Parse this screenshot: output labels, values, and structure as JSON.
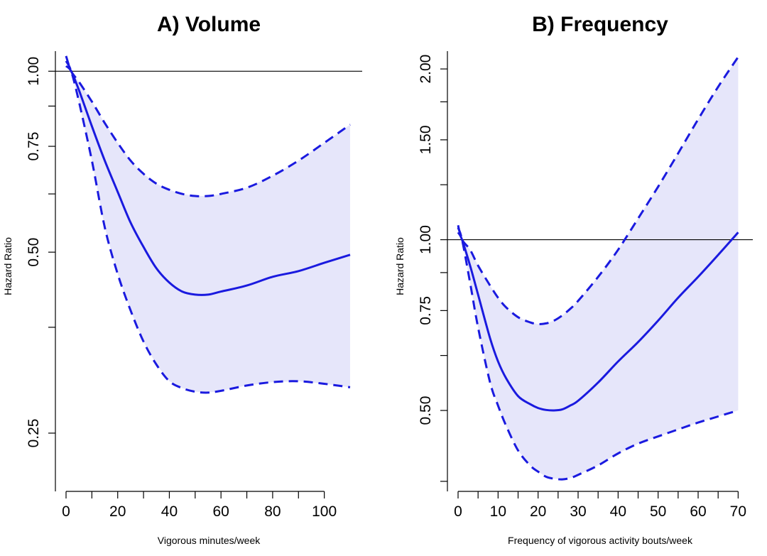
{
  "chart_data": [
    {
      "type": "line",
      "title": "A) Volume",
      "xlabel": "Vigorous minutes/week",
      "ylabel": "Hazard Ratio",
      "xlim": [
        0,
        110
      ],
      "ylim": [
        0.2,
        1.08
      ],
      "x_ticks": [
        0,
        20,
        40,
        60,
        80,
        100
      ],
      "y_ticks": [
        0.25,
        0.5,
        0.75,
        1.0
      ],
      "y_tick_labels": [
        "0.25",
        "0.50",
        "0.75",
        "1.00"
      ],
      "reference_line": 1.0,
      "colors": {
        "line": "#1a1adf",
        "band": "#e6e6fa",
        "reference": "#000000"
      },
      "series": [
        {
          "name": "estimate",
          "x": [
            0,
            2,
            5,
            10,
            15,
            20,
            25,
            30,
            35,
            40,
            45,
            50,
            55,
            60,
            70,
            80,
            90,
            100,
            110
          ],
          "values": [
            1.02,
            1.0,
            0.93,
            0.81,
            0.71,
            0.63,
            0.56,
            0.51,
            0.47,
            0.445,
            0.43,
            0.425,
            0.425,
            0.43,
            0.44,
            0.455,
            0.465,
            0.48,
            0.495
          ]
        },
        {
          "name": "upper_ci",
          "x": [
            0,
            2,
            5,
            10,
            15,
            20,
            25,
            30,
            35,
            40,
            45,
            50,
            55,
            60,
            70,
            80,
            90,
            100,
            110
          ],
          "values": [
            1.06,
            1.0,
            0.96,
            0.89,
            0.82,
            0.76,
            0.71,
            0.675,
            0.65,
            0.635,
            0.625,
            0.62,
            0.62,
            0.625,
            0.64,
            0.67,
            0.71,
            0.76,
            0.815
          ]
        },
        {
          "name": "lower_ci",
          "x": [
            0,
            2,
            5,
            10,
            15,
            20,
            25,
            30,
            35,
            40,
            45,
            50,
            55,
            60,
            70,
            80,
            90,
            100,
            110
          ],
          "values": [
            1.04,
            1.0,
            0.89,
            0.71,
            0.55,
            0.46,
            0.4,
            0.355,
            0.325,
            0.305,
            0.297,
            0.293,
            0.292,
            0.294,
            0.3,
            0.304,
            0.305,
            0.302,
            0.298
          ]
        }
      ]
    },
    {
      "type": "line",
      "title": "B) Frequency",
      "xlabel": "Frequency of vigorous activity bouts/week",
      "ylabel": "Hazard Ratio",
      "xlim": [
        0,
        71
      ],
      "ylim": [
        0.36,
        2.15
      ],
      "x_ticks": [
        0,
        10,
        20,
        30,
        40,
        50,
        60,
        70
      ],
      "y_ticks": [
        0.5,
        0.75,
        1.0,
        1.5,
        2.0
      ],
      "y_tick_labels": [
        "0.50",
        "0.75",
        "1.00",
        "1.50",
        "2.00"
      ],
      "reference_line": 1.0,
      "colors": {
        "line": "#1a1adf",
        "band": "#e6e6fa",
        "reference": "#000000"
      },
      "series": [
        {
          "name": "estimate",
          "x": [
            0,
            1,
            3,
            5,
            8,
            10,
            12,
            15,
            18,
            20,
            22,
            24,
            26,
            28,
            30,
            35,
            40,
            45,
            50,
            55,
            60,
            65,
            70
          ],
          "values": [
            1.03,
            1.0,
            0.9,
            0.8,
            0.67,
            0.61,
            0.57,
            0.53,
            0.513,
            0.505,
            0.501,
            0.5,
            0.502,
            0.51,
            0.52,
            0.56,
            0.61,
            0.66,
            0.72,
            0.79,
            0.86,
            0.94,
            1.03
          ]
        },
        {
          "name": "upper_ci",
          "x": [
            0,
            1,
            3,
            5,
            8,
            10,
            12,
            15,
            18,
            20,
            22,
            24,
            26,
            28,
            30,
            35,
            40,
            45,
            50,
            55,
            60,
            65,
            70
          ],
          "values": [
            1.06,
            1.0,
            0.96,
            0.9,
            0.83,
            0.79,
            0.76,
            0.73,
            0.715,
            0.71,
            0.712,
            0.72,
            0.735,
            0.755,
            0.78,
            0.86,
            0.96,
            1.09,
            1.24,
            1.42,
            1.63,
            1.86,
            2.1
          ]
        },
        {
          "name": "lower_ci",
          "x": [
            0,
            1,
            3,
            5,
            8,
            10,
            12,
            15,
            18,
            20,
            22,
            24,
            26,
            28,
            30,
            35,
            40,
            45,
            50,
            55,
            60,
            65,
            70
          ],
          "values": [
            1.05,
            1.0,
            0.84,
            0.7,
            0.56,
            0.51,
            0.47,
            0.425,
            0.4,
            0.39,
            0.382,
            0.379,
            0.378,
            0.38,
            0.385,
            0.4,
            0.42,
            0.437,
            0.45,
            0.463,
            0.476,
            0.488,
            0.5
          ]
        }
      ]
    }
  ]
}
